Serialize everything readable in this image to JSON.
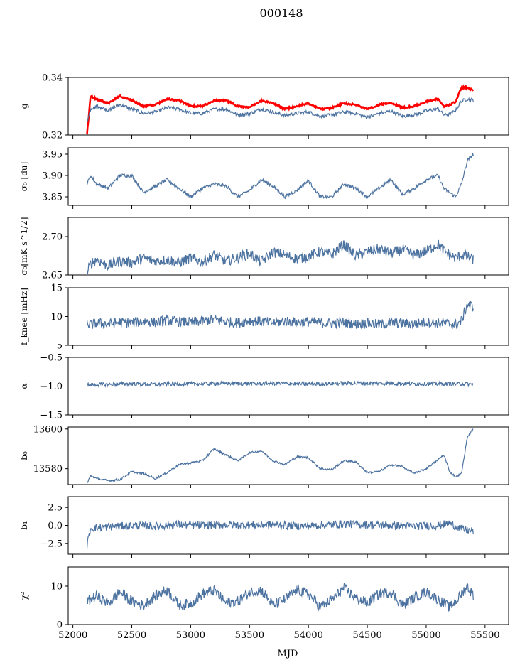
{
  "title": "000148",
  "xlabel": "MJD",
  "xlim": [
    51960,
    55700
  ],
  "x_ticks": [
    52000,
    52500,
    53000,
    53500,
    54000,
    54500,
    55000,
    55500
  ],
  "x_tick_labels": [
    "52000",
    "52500",
    "53000",
    "53500",
    "54000",
    "54500",
    "55000",
    "55500"
  ],
  "colors": {
    "series": "#4c72a0",
    "highlight": "#ff0000",
    "axis": "#000000"
  },
  "chart_data": [
    {
      "type": "line",
      "ylabel": "g",
      "ylim": [
        0.32,
        0.34
      ],
      "y_ticks": [
        0.32,
        0.34
      ],
      "y_tick_labels": [
        "0.32",
        "0.34"
      ],
      "series": [
        {
          "color": "#ff0000",
          "x_range": [
            52120,
            55400
          ],
          "x": [
            52120,
            52150,
            52200,
            52300,
            52400,
            52500,
            52600,
            52700,
            52800,
            52900,
            53000,
            53100,
            53200,
            53300,
            53400,
            53500,
            53600,
            53700,
            53800,
            53900,
            54000,
            54100,
            54200,
            54300,
            54400,
            54500,
            54600,
            54700,
            54800,
            54900,
            55000,
            55100,
            55150,
            55200,
            55250,
            55300,
            55350,
            55400
          ],
          "y": [
            0.3205,
            0.3335,
            0.3325,
            0.331,
            0.3335,
            0.332,
            0.33,
            0.3305,
            0.3325,
            0.332,
            0.33,
            0.33,
            0.332,
            0.332,
            0.33,
            0.3295,
            0.332,
            0.331,
            0.329,
            0.33,
            0.331,
            0.329,
            0.3295,
            0.331,
            0.3305,
            0.329,
            0.3305,
            0.3312,
            0.3295,
            0.33,
            0.3315,
            0.3325,
            0.33,
            0.3305,
            0.3315,
            0.3365,
            0.3365,
            0.3355
          ]
        },
        {
          "color": "#4c72a0",
          "x_range": [
            52120,
            55400
          ],
          "x": [
            52120,
            52150,
            52200,
            52300,
            52400,
            52500,
            52600,
            52700,
            52800,
            52900,
            53000,
            53100,
            53200,
            53300,
            53400,
            53500,
            53600,
            53700,
            53800,
            53900,
            54000,
            54100,
            54200,
            54300,
            54400,
            54500,
            54600,
            54700,
            54800,
            54900,
            55000,
            55100,
            55150,
            55200,
            55250,
            55300,
            55350,
            55400
          ],
          "y": [
            0.3245,
            0.329,
            0.33,
            0.3285,
            0.3305,
            0.329,
            0.3275,
            0.328,
            0.3295,
            0.329,
            0.3275,
            0.3275,
            0.329,
            0.329,
            0.327,
            0.3275,
            0.329,
            0.328,
            0.3268,
            0.3275,
            0.328,
            0.3265,
            0.327,
            0.328,
            0.3275,
            0.3262,
            0.3275,
            0.3283,
            0.3265,
            0.327,
            0.3283,
            0.3292,
            0.327,
            0.3272,
            0.3285,
            0.3318,
            0.3325,
            0.3322
          ]
        }
      ]
    },
    {
      "type": "line",
      "ylabel": "σ₀ [du]",
      "ylim": [
        3.83,
        3.965
      ],
      "y_ticks": [
        3.85,
        3.9,
        3.95
      ],
      "y_tick_labels": [
        "3.85",
        "3.90",
        "3.95"
      ],
      "series": [
        {
          "color": "#4c72a0",
          "x": [
            52120,
            52150,
            52200,
            52300,
            52400,
            52500,
            52600,
            52700,
            52800,
            52900,
            53000,
            53100,
            53200,
            53300,
            53400,
            53500,
            53600,
            53700,
            53800,
            53900,
            54000,
            54100,
            54200,
            54300,
            54400,
            54500,
            54600,
            54700,
            54800,
            54900,
            55000,
            55100,
            55150,
            55200,
            55250,
            55300,
            55350,
            55400
          ],
          "y": [
            3.88,
            3.9,
            3.88,
            3.87,
            3.9,
            3.9,
            3.86,
            3.875,
            3.89,
            3.87,
            3.85,
            3.87,
            3.88,
            3.875,
            3.85,
            3.865,
            3.89,
            3.875,
            3.85,
            3.865,
            3.888,
            3.85,
            3.85,
            3.88,
            3.87,
            3.85,
            3.87,
            3.89,
            3.855,
            3.87,
            3.89,
            3.9,
            3.87,
            3.86,
            3.85,
            3.88,
            3.935,
            3.95
          ]
        }
      ]
    },
    {
      "type": "line",
      "ylabel": "σ₀[mK s^1/2]",
      "ylim": [
        2.65,
        2.725
      ],
      "y_ticks": [
        2.65,
        2.7
      ],
      "y_tick_labels": [
        "2.65",
        "2.70"
      ],
      "series": [
        {
          "color": "#4c72a0",
          "x": [
            52120,
            52150,
            52200,
            52300,
            52400,
            52500,
            52600,
            52700,
            52800,
            52900,
            53000,
            53100,
            53200,
            53300,
            53400,
            53500,
            53600,
            53700,
            53800,
            53900,
            54000,
            54100,
            54200,
            54300,
            54400,
            54500,
            54600,
            54700,
            54800,
            54900,
            55000,
            55100,
            55150,
            55200,
            55250,
            55300,
            55350,
            55400
          ],
          "y": [
            2.652,
            2.665,
            2.67,
            2.662,
            2.668,
            2.666,
            2.672,
            2.668,
            2.67,
            2.666,
            2.672,
            2.667,
            2.676,
            2.668,
            2.673,
            2.678,
            2.667,
            2.68,
            2.676,
            2.671,
            2.674,
            2.68,
            2.677,
            2.69,
            2.675,
            2.68,
            2.684,
            2.678,
            2.683,
            2.676,
            2.681,
            2.69,
            2.682,
            2.676,
            2.672,
            2.676,
            2.674,
            2.67
          ]
        }
      ]
    },
    {
      "type": "line",
      "ylabel": "f_knee [mHz]",
      "ylim": [
        5,
        15
      ],
      "y_ticks": [
        5,
        10,
        15
      ],
      "y_tick_labels": [
        "5",
        "10",
        "15"
      ],
      "series": [
        {
          "color": "#4c72a0",
          "x": [
            52120,
            52150,
            52200,
            52300,
            52400,
            52500,
            52600,
            52700,
            52800,
            52900,
            53000,
            53100,
            53200,
            53300,
            53400,
            53500,
            53600,
            53700,
            53800,
            53900,
            54000,
            54100,
            54200,
            54300,
            54400,
            54500,
            54600,
            54700,
            54800,
            54900,
            55000,
            55100,
            55150,
            55200,
            55250,
            55300,
            55350,
            55400
          ],
          "y": [
            8.8,
            8.5,
            8.9,
            8.7,
            9.0,
            8.9,
            9.2,
            9.0,
            9.3,
            9.1,
            9.0,
            9.2,
            9.5,
            9.1,
            8.9,
            9.3,
            9.1,
            8.9,
            9.2,
            9.0,
            9.1,
            8.9,
            8.8,
            9.0,
            8.7,
            8.9,
            8.6,
            8.9,
            8.8,
            8.7,
            9.0,
            8.8,
            8.9,
            8.7,
            8.6,
            9.2,
            12.2,
            11.6
          ]
        }
      ]
    },
    {
      "type": "line",
      "ylabel": "α",
      "ylim": [
        -1.5,
        -0.5
      ],
      "y_ticks": [
        -1.5,
        -1.0,
        -0.5
      ],
      "y_tick_labels": [
        "−1.5",
        "−1.0",
        "−0.5"
      ],
      "series": [
        {
          "color": "#4c72a0",
          "x": [
            52120,
            52300,
            52500,
            52700,
            52900,
            53100,
            53300,
            53500,
            53700,
            53900,
            54100,
            54300,
            54500,
            54700,
            54900,
            55100,
            55300,
            55400
          ],
          "y": [
            -0.98,
            -0.97,
            -0.96,
            -0.97,
            -0.96,
            -0.96,
            -0.95,
            -0.96,
            -0.95,
            -0.96,
            -0.96,
            -0.95,
            -0.95,
            -0.95,
            -0.96,
            -0.96,
            -0.96,
            -0.97
          ]
        }
      ]
    },
    {
      "type": "line",
      "ylabel": "b₀",
      "ylim": [
        13572,
        13601
      ],
      "y_ticks": [
        13580,
        13600
      ],
      "y_tick_labels": [
        "13580",
        "13600"
      ],
      "series": [
        {
          "color": "#4c72a0",
          "x": [
            52120,
            52150,
            52200,
            52300,
            52400,
            52500,
            52600,
            52700,
            52800,
            52900,
            53000,
            53100,
            53200,
            53300,
            53400,
            53500,
            53600,
            53700,
            53800,
            53900,
            54000,
            54100,
            54200,
            54300,
            54400,
            54500,
            54600,
            54700,
            54800,
            54900,
            55000,
            55100,
            55150,
            55200,
            55250,
            55300,
            55350,
            55400
          ],
          "y": [
            13572.5,
            13576.5,
            13575.0,
            13574.0,
            13574.5,
            13578.5,
            13577.5,
            13575.0,
            13578.0,
            13582.0,
            13583.0,
            13584.0,
            13590.0,
            13587.0,
            13584.0,
            13588.0,
            13589.0,
            13584.0,
            13582.0,
            13586.0,
            13585.5,
            13580.0,
            13579.5,
            13584.0,
            13583.5,
            13578.0,
            13578.5,
            13582.0,
            13581.0,
            13577.5,
            13580.0,
            13584.5,
            13587.0,
            13578.5,
            13576.0,
            13577.5,
            13596.0,
            13600.0
          ]
        }
      ]
    },
    {
      "type": "line",
      "ylabel": "b₁",
      "ylim": [
        -4,
        4
      ],
      "y_ticks": [
        -2.5,
        0.0,
        2.5
      ],
      "y_tick_labels": [
        "−2.5",
        "0.0",
        "2.5"
      ],
      "series": [
        {
          "color": "#4c72a0",
          "x": [
            52120,
            52150,
            52300,
            52500,
            52700,
            52900,
            53100,
            53300,
            53500,
            53700,
            53900,
            54100,
            54300,
            54500,
            54700,
            54900,
            55100,
            55200,
            55300,
            55400
          ],
          "y": [
            -2.8,
            -0.4,
            -0.2,
            0.0,
            -0.1,
            0.1,
            0.0,
            0.1,
            0.0,
            0.1,
            -0.1,
            0.0,
            0.2,
            0.1,
            0.0,
            -0.1,
            0.0,
            0.3,
            -0.5,
            -0.8
          ]
        }
      ]
    },
    {
      "type": "line",
      "ylabel": "χ²",
      "ylim": [
        0,
        15
      ],
      "y_ticks": [
        0,
        10
      ],
      "y_tick_labels": [
        "0",
        "10"
      ],
      "series": [
        {
          "color": "#4c72a0",
          "x": [
            52120,
            52150,
            52200,
            52300,
            52400,
            52500,
            52600,
            52700,
            52800,
            52900,
            53000,
            53100,
            53200,
            53300,
            53400,
            53500,
            53600,
            53700,
            53800,
            53900,
            54000,
            54100,
            54200,
            54300,
            54400,
            54500,
            54600,
            54700,
            54800,
            54900,
            55000,
            55100,
            55150,
            55200,
            55250,
            55300,
            55350,
            55400
          ],
          "y": [
            6.0,
            6.5,
            7.5,
            5.5,
            8.5,
            6.0,
            5.0,
            7.5,
            9.0,
            5.0,
            5.5,
            8.0,
            9.0,
            5.5,
            6.0,
            8.5,
            9.0,
            5.0,
            6.5,
            9.0,
            8.0,
            4.5,
            6.5,
            9.5,
            7.0,
            5.5,
            8.0,
            8.5,
            5.0,
            7.0,
            8.5,
            6.5,
            5.5,
            4.5,
            6.0,
            8.0,
            10.0,
            7.5
          ]
        }
      ]
    }
  ]
}
